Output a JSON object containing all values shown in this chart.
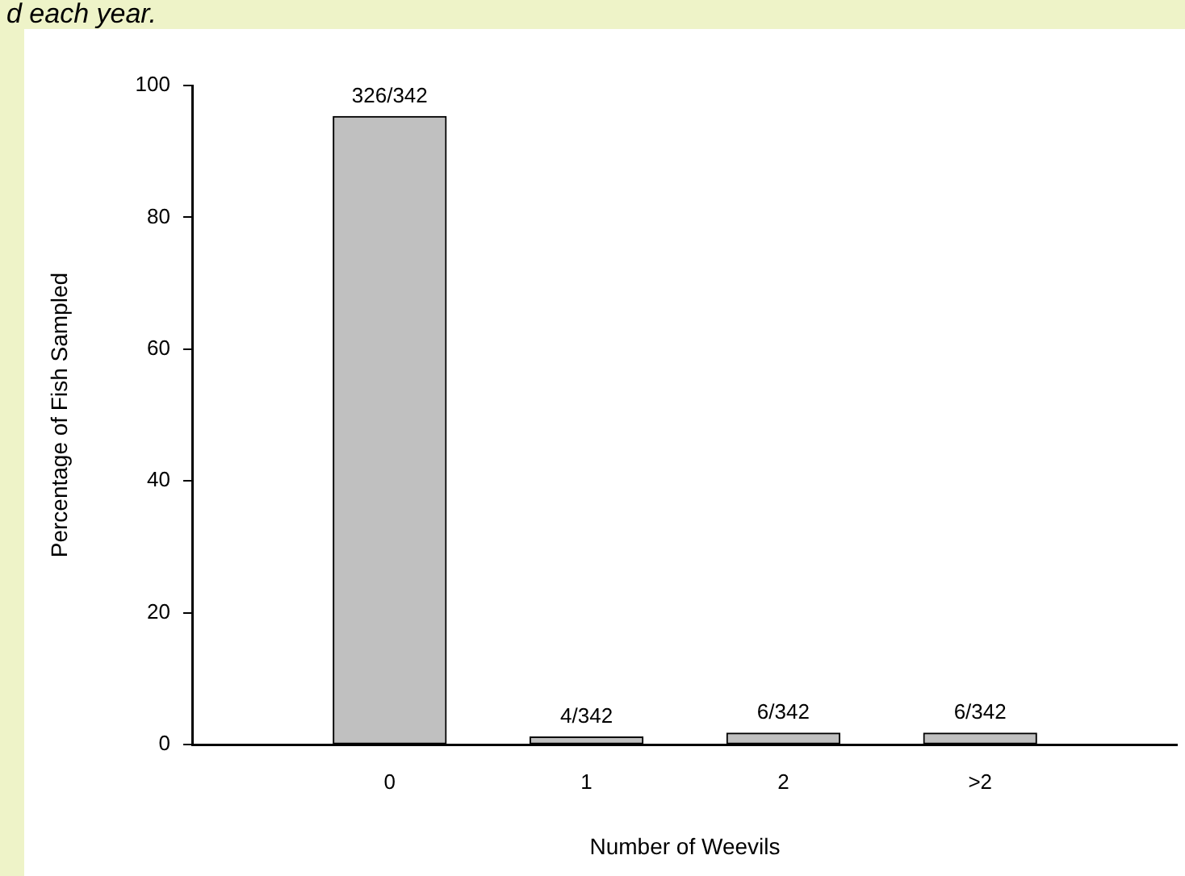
{
  "chart_data": {
    "type": "bar",
    "xlabel": "Number of Weevils",
    "ylabel": "Percentage of Fish Sampled",
    "categories": [
      "0",
      "1",
      "2",
      ">2"
    ],
    "values": [
      95.3,
      1.17,
      1.75,
      1.75
    ],
    "value_labels": [
      "326/342",
      "4/342",
      "6/342",
      "6/342"
    ],
    "color": "#c0c0c0",
    "ylim": [
      0,
      100
    ],
    "yticks": [
      0,
      20,
      40,
      60,
      80,
      100
    ],
    "grid": false,
    "legend": false,
    "annotations": [
      "d each year."
    ]
  }
}
